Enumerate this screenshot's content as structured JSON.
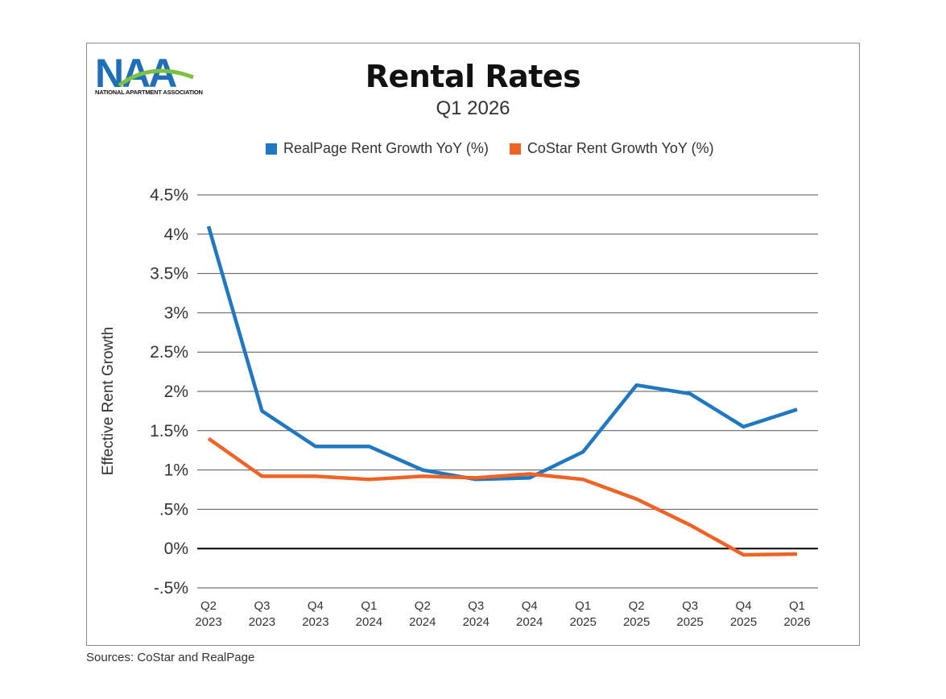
{
  "brand": {
    "logo_text": "NAA",
    "logo_caption": "NATIONAL APARTMENT ASSOCIATION"
  },
  "source_note": "Sources: CoStar and RealPage",
  "chart_data": {
    "type": "line",
    "title": "Rental Rates",
    "subtitle": "Q1 2026",
    "ylabel": "Effective Rent Growth",
    "xlabel": "",
    "ylim": [
      -0.5,
      4.5
    ],
    "yticks": [
      -0.5,
      0,
      0.5,
      1,
      1.5,
      2,
      2.5,
      3,
      3.5,
      4,
      4.5
    ],
    "ytick_labels": [
      "-.5%",
      "0%",
      ".5%",
      "1%",
      "1.5%",
      "2%",
      "2.5%",
      "3%",
      "3.5%",
      "4%",
      "4.5%"
    ],
    "grid": true,
    "legend_position": "top",
    "categories": [
      [
        "Q2",
        "2023"
      ],
      [
        "Q3",
        "2023"
      ],
      [
        "Q4",
        "2023"
      ],
      [
        "Q1",
        "2024"
      ],
      [
        "Q2",
        "2024"
      ],
      [
        "Q3",
        "2024"
      ],
      [
        "Q4",
        "2024"
      ],
      [
        "Q1",
        "2025"
      ],
      [
        "Q2",
        "2025"
      ],
      [
        "Q3",
        "2025"
      ],
      [
        "Q4",
        "2025"
      ],
      [
        "Q1",
        "2026"
      ]
    ],
    "series": [
      {
        "name": "RealPage Rent Growth YoY (%)",
        "color": "#1f78c1",
        "values": [
          4.1,
          1.75,
          1.3,
          1.3,
          1.0,
          0.88,
          0.9,
          1.23,
          2.08,
          1.97,
          1.55,
          1.77
        ]
      },
      {
        "name": "CoStar Rent Growth YoY (%)",
        "color": "#f06325",
        "values": [
          1.4,
          0.92,
          0.92,
          0.88,
          0.92,
          0.9,
          0.95,
          0.88,
          0.63,
          0.3,
          -0.08,
          -0.07
        ]
      }
    ]
  }
}
